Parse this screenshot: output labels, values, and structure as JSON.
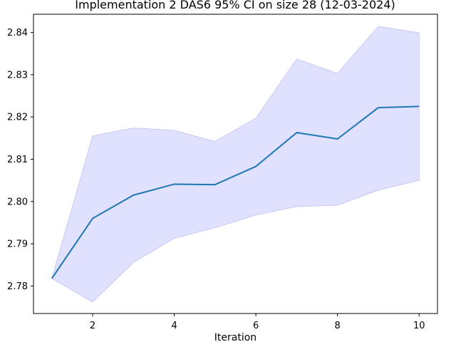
{
  "chart_data": {
    "type": "line",
    "title": "Implementation 2 DAS6 95% CI on size 28 (12-03-2024)",
    "xlabel": "Iteration",
    "ylabel": "",
    "xlim": [
      0.55,
      10.45
    ],
    "ylim": [
      2.7735,
      2.8443
    ],
    "x_ticks": [
      2,
      4,
      6,
      8,
      10
    ],
    "y_ticks": [
      2.78,
      2.79,
      2.8,
      2.81,
      2.82,
      2.83,
      2.84
    ],
    "x_tick_labels": [
      "2",
      "4",
      "6",
      "8",
      "10"
    ],
    "y_tick_labels": [
      "2.78",
      "2.79",
      "2.80",
      "2.81",
      "2.82",
      "2.83",
      "2.84"
    ],
    "grid": false,
    "legend": "none",
    "colors": {
      "line": "#1f77b4",
      "band_fill": "#e0e0ff",
      "band_edge": "#c8c8f4"
    },
    "series": [
      {
        "x": [
          1,
          2,
          3,
          4,
          5,
          6,
          7,
          8,
          9,
          10
        ],
        "values": [
          2.7818,
          2.796,
          2.8015,
          2.8041,
          2.804,
          2.8083,
          2.8163,
          2.8148,
          2.8222,
          2.8225
        ],
        "ci_lower": [
          2.7818,
          2.7762,
          2.7856,
          2.7913,
          2.7938,
          2.7968,
          2.7988,
          2.7991,
          2.8027,
          2.805
        ],
        "ci_upper": [
          2.7818,
          2.8155,
          2.8174,
          2.8168,
          2.8142,
          2.8197,
          2.8337,
          2.8303,
          2.8414,
          2.8399
        ]
      }
    ]
  }
}
